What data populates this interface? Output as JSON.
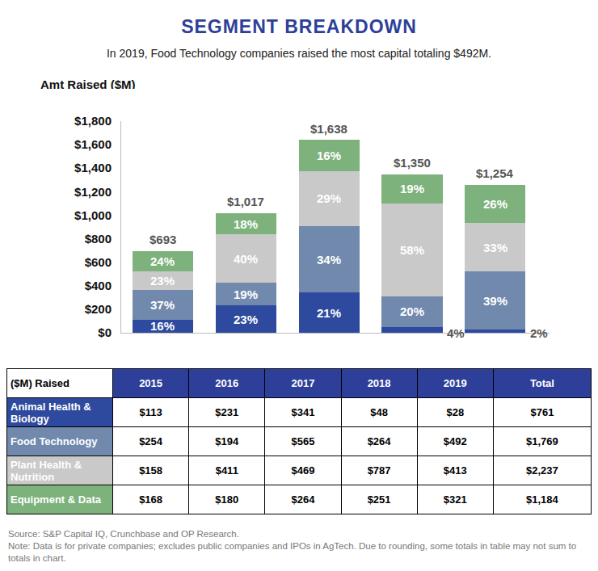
{
  "chart_data": {
    "type": "bar",
    "title": "SEGMENT BREAKDOWN",
    "subtitle": "In 2019, Food Technology companies raised the most capital totaling $492M.",
    "y_label": "Amt Raised ($M)",
    "categories": [
      "2015",
      "2016",
      "2017",
      "2018",
      "2019"
    ],
    "series": [
      {
        "name": "Animal Health & Biology",
        "color": "#2e4a9e",
        "values": [
          113,
          231,
          341,
          48,
          28
        ],
        "labels": [
          "16%",
          "23%",
          "21%",
          "4%",
          "2%"
        ]
      },
      {
        "name": "Food Technology",
        "color": "#7189ad",
        "values": [
          254,
          194,
          565,
          264,
          492
        ],
        "labels": [
          "37%",
          "19%",
          "34%",
          "20%",
          "39%"
        ]
      },
      {
        "name": "Plant Health & Nutrition",
        "color": "#c9c9c9",
        "values": [
          158,
          411,
          469,
          787,
          413
        ],
        "labels": [
          "23%",
          "40%",
          "29%",
          "58%",
          "33%"
        ]
      },
      {
        "name": "Equipment & Data",
        "color": "#7db27d",
        "values": [
          168,
          180,
          264,
          251,
          321
        ],
        "labels": [
          "24%",
          "18%",
          "16%",
          "19%",
          "26%"
        ]
      }
    ],
    "totals": [
      693,
      1017,
      1638,
      1350,
      1254
    ],
    "total_labels": [
      "$693",
      "$1,017",
      "$1,638",
      "$1,350",
      "$1,254"
    ],
    "ylim": [
      0,
      1800
    ],
    "yticks": [
      {
        "value": 0,
        "label": "$0"
      },
      {
        "value": 200,
        "label": "$200"
      },
      {
        "value": 400,
        "label": "$400"
      },
      {
        "value": 600,
        "label": "$600"
      },
      {
        "value": 800,
        "label": "$800"
      },
      {
        "value": 1000,
        "label": "$1,000"
      },
      {
        "value": 1200,
        "label": "$1,200"
      },
      {
        "value": 1400,
        "label": "$1,400"
      },
      {
        "value": 1600,
        "label": "$1,600"
      },
      {
        "value": 1800,
        "label": "$1,800"
      }
    ],
    "stacked": true,
    "grid": false,
    "tick_labels": "y"
  },
  "table": {
    "header": [
      "($M) Raised",
      "2015",
      "2016",
      "2017",
      "2018",
      "2019",
      "Total"
    ],
    "row_colors": [
      "#2e4a9e",
      "#7189ad",
      "#c9c9c9",
      "#7db27d"
    ],
    "rows": [
      [
        "Animal Health & Biology",
        "$113",
        "$231",
        "$341",
        "$48",
        "$28",
        "$761"
      ],
      [
        "Food Technology",
        "$254",
        "$194",
        "$565",
        "$264",
        "$492",
        "$1,769"
      ],
      [
        "Plant Health & Nutrition",
        "$158",
        "$411",
        "$469",
        "$787",
        "$413",
        "$2,237"
      ],
      [
        "Equipment & Data",
        "$168",
        "$180",
        "$264",
        "$251",
        "$321",
        "$1,184"
      ]
    ]
  },
  "notes": [
    "Source: S&P Capital IQ, Crunchbase and OP Research.",
    "Note: Data is for private companies; excludes public companies and IPOs in AgTech.  Due to rounding, some totals in table may not sum to totals in chart."
  ]
}
